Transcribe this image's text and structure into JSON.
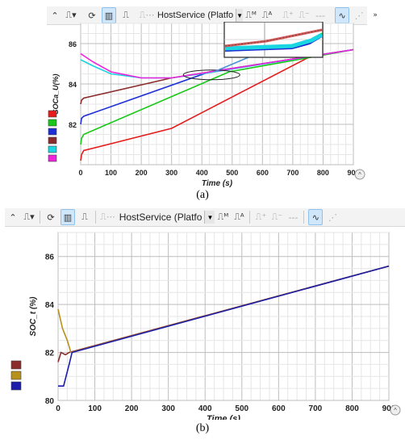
{
  "toolbar": {
    "host_service_label": "HostService (Platfo",
    "overflow_label": "»"
  },
  "captions": {
    "a": "(a)",
    "b": "(b)"
  },
  "colors": {
    "red": "#e51c1c",
    "green": "#18c818",
    "blue": "#1f2fd6",
    "brown": "#8b2b2b",
    "cyan": "#1ad6e0",
    "magenta": "#ee22dd",
    "olive": "#b8901c",
    "navy": "#1c1caa"
  },
  "chart_data": [
    {
      "type": "line",
      "ylabel": "SOCa_U(%)",
      "xlabel": "Time (s)",
      "xlim": [
        0,
        900
      ],
      "ylim": [
        80,
        87
      ],
      "xticks": [
        "0",
        "100",
        "200",
        "300",
        "400",
        "500",
        "600",
        "700",
        "800",
        "900"
      ],
      "yticks": [
        "82",
        "84",
        "86"
      ],
      "grid": true,
      "legend": "left swatches",
      "inset_zoom": true,
      "series": [
        {
          "color": "#e51c1c",
          "points": [
            [
              0,
              80.2
            ],
            [
              3,
              80.5
            ],
            [
              10,
              80.7
            ],
            [
              300,
              81.8
            ],
            [
              750,
              85.3
            ],
            [
              900,
              85.7
            ]
          ]
        },
        {
          "color": "#18c818",
          "points": [
            [
              0,
              81.0
            ],
            [
              3,
              81.3
            ],
            [
              10,
              81.5
            ],
            [
              490,
              84.6
            ],
            [
              900,
              85.7
            ]
          ]
        },
        {
          "color": "#1f2fd6",
          "points": [
            [
              0,
              82.0
            ],
            [
              3,
              82.3
            ],
            [
              10,
              82.4
            ],
            [
              425,
              84.6
            ],
            [
              900,
              85.7
            ]
          ]
        },
        {
          "color": "#8b2b2b",
          "points": [
            [
              0,
              83.0
            ],
            [
              3,
              83.2
            ],
            [
              10,
              83.3
            ],
            [
              300,
              84.3
            ],
            [
              900,
              85.7
            ]
          ]
        },
        {
          "color": "#1ad6e0",
          "points": [
            [
              0,
              85.2
            ],
            [
              40,
              84.9
            ],
            [
              100,
              84.5
            ],
            [
              200,
              84.3
            ],
            [
              300,
              84.3
            ],
            [
              420,
              84.55
            ],
            [
              900,
              85.7
            ]
          ]
        },
        {
          "color": "#ee22dd",
          "points": [
            [
              0,
              85.5
            ],
            [
              40,
              85.1
            ],
            [
              100,
              84.6
            ],
            [
              200,
              84.3
            ],
            [
              300,
              84.3
            ],
            [
              900,
              85.7
            ]
          ]
        }
      ]
    },
    {
      "type": "line",
      "ylabel": "SOC_t (%)",
      "xlabel": "Time (s)",
      "xlim": [
        0,
        900
      ],
      "ylim": [
        80,
        87
      ],
      "xticks": [
        "0",
        "100",
        "200",
        "300",
        "400",
        "500",
        "600",
        "700",
        "800",
        "900"
      ],
      "yticks": [
        "80",
        "82",
        "84",
        "86"
      ],
      "grid": true,
      "legend": "left swatches",
      "series": [
        {
          "color": "#8b2b2b",
          "points": [
            [
              0,
              81.6
            ],
            [
              8,
              82.0
            ],
            [
              20,
              81.9
            ],
            [
              30,
              82.0
            ],
            [
              900,
              85.6
            ]
          ]
        },
        {
          "color": "#b8901c",
          "points": [
            [
              0,
              83.8
            ],
            [
              12,
              83.0
            ],
            [
              25,
              82.5
            ],
            [
              35,
              82.0
            ],
            [
              900,
              85.6
            ]
          ]
        },
        {
          "color": "#1c1caa",
          "points": [
            [
              0,
              80.6
            ],
            [
              15,
              80.6
            ],
            [
              30,
              81.5
            ],
            [
              38,
              82.0
            ],
            [
              900,
              85.6
            ]
          ]
        }
      ]
    }
  ]
}
